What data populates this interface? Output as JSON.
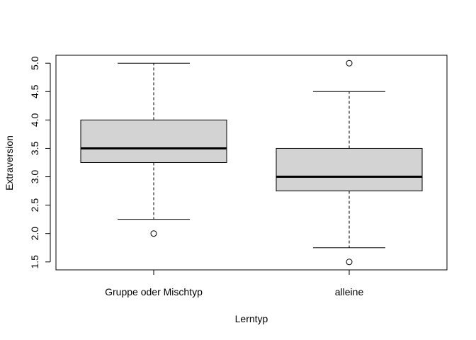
{
  "chart_data": {
    "type": "boxplot",
    "title": "",
    "xlabel": "Lerntyp",
    "ylabel": "Extraversion",
    "ylim": [
      1.36,
      5.14
    ],
    "yticks": [
      "1.5",
      "2.0",
      "2.5",
      "3.0",
      "3.5",
      "4.0",
      "4.5",
      "5.0"
    ],
    "grid": false,
    "legend": "none",
    "box_fill": "#d3d3d3",
    "line_color": "#000000",
    "groups": [
      {
        "label": "Gruppe oder Mischtyp",
        "whisker_low": 2.25,
        "q1": 3.25,
        "median": 3.5,
        "q3": 4.0,
        "whisker_high": 5.0,
        "outliers": [
          2.0
        ]
      },
      {
        "label": "alleine",
        "whisker_low": 1.75,
        "q1": 2.75,
        "median": 3.0,
        "q3": 3.5,
        "whisker_high": 4.5,
        "outliers": [
          1.5,
          5.0
        ]
      }
    ]
  }
}
